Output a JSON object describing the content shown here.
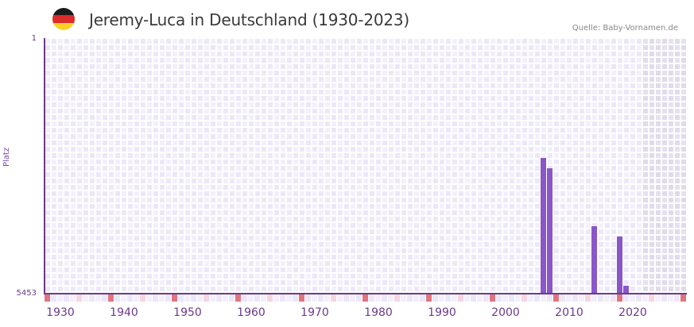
{
  "header": {
    "title": "Jeremy-Luca in Deutschland (1930-2023)",
    "source": "Quelle: Baby-Vornamen.de",
    "flag_icon": "germany-flag-icon",
    "flag_colors": [
      "#1a1a1a",
      "#dd2a2a",
      "#fcd22a"
    ]
  },
  "colors": {
    "axis": "#6b3a8c",
    "bar": "#8a56c8",
    "grid_a": "#f3f0fc",
    "grid_b": "#ece7f8",
    "future_a": "#e6e1ef",
    "future_b": "#e0dbeb",
    "decade_marker": "#e27480",
    "half_decade_marker": "#f5d6df"
  },
  "chart_data": {
    "type": "bar",
    "title": "Jeremy-Luca in Deutschland (1930-2023)",
    "xlabel": "",
    "ylabel": "Platz",
    "y_inverted": true,
    "ylim": [
      1,
      5453
    ],
    "y_ticks": [
      "1",
      "5453"
    ],
    "x_range": [
      1928,
      2028
    ],
    "x_ticks": [
      "1930",
      "1940",
      "1950",
      "1960",
      "1970",
      "1980",
      "1990",
      "2000",
      "2010",
      "2020"
    ],
    "grid": true,
    "future_shaded_from": 2022,
    "x": [
      2006,
      2007,
      2014,
      2018,
      2019
    ],
    "values": [
      2560,
      2780,
      4010,
      4230,
      5280
    ],
    "value_label": "Rank (Platz)"
  }
}
